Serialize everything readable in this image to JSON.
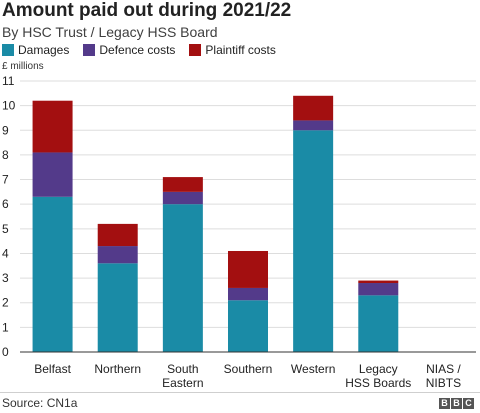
{
  "chart_data": {
    "type": "bar",
    "stacked": true,
    "title": "Amount paid out during 2021/22",
    "subtitle": "By HSC Trust / Legacy HSS Board",
    "ylabel": "£ millions",
    "ylim": [
      0,
      11
    ],
    "yticks": [
      "0",
      "1",
      "2",
      "3",
      "4",
      "5",
      "6",
      "7",
      "8",
      "9",
      "10",
      "11"
    ],
    "grid": true,
    "legend_position": "top-left",
    "categories": [
      [
        "Belfast"
      ],
      [
        "Northern"
      ],
      [
        "South",
        "Eastern"
      ],
      [
        "Southern"
      ],
      [
        "Western"
      ],
      [
        "Legacy",
        "HSS Boards"
      ],
      [
        "NIAS /",
        "NIBTS"
      ]
    ],
    "series": [
      {
        "name": "Damages",
        "color": "#1a8ba6",
        "values": [
          6.3,
          3.6,
          6.0,
          2.1,
          9.0,
          2.3,
          0.0
        ]
      },
      {
        "name": "Defence costs",
        "color": "#533a8a",
        "values": [
          1.8,
          0.7,
          0.5,
          0.5,
          0.4,
          0.5,
          0.0
        ]
      },
      {
        "name": "Plaintiff costs",
        "color": "#a30f10",
        "values": [
          2.1,
          0.9,
          0.6,
          1.5,
          1.0,
          0.1,
          0.0
        ]
      }
    ]
  },
  "footer": {
    "source": "Source: CN1a",
    "logo": [
      "B",
      "B",
      "C"
    ]
  }
}
